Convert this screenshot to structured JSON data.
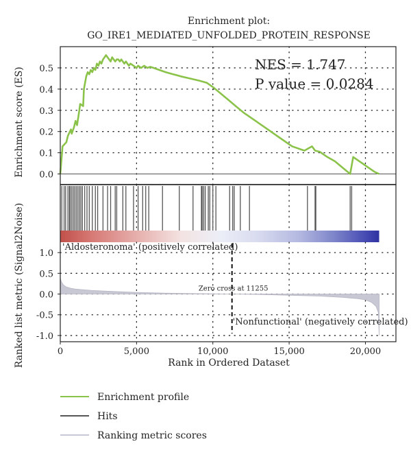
{
  "chart_data": {
    "type": "line",
    "title_line1": "Enrichment plot:",
    "title_line2": "GO_IRE1_MEDIATED_UNFOLDED_PROTEIN_RESPONSE",
    "stats": {
      "nes": "NES = 1.747",
      "pvalue": "P value = 0.0284"
    },
    "top_panel": {
      "ylabel": "Enrichment score (ES)",
      "ylim": [
        -0.05,
        0.6
      ],
      "yticks": [
        0.0,
        0.1,
        0.2,
        0.3,
        0.4,
        0.5
      ],
      "ytick_labels": [
        "0.0",
        "0.1",
        "0.2",
        "0.3",
        "0.4",
        "0.5"
      ],
      "series": [
        {
          "name": "Enrichment profile",
          "color": "#8bc34a",
          "x": [
            0,
            150,
            400,
            500,
            700,
            750,
            900,
            1000,
            1100,
            1250,
            1300,
            1500,
            1550,
            1700,
            1800,
            1900,
            2000,
            2100,
            2200,
            2300,
            2400,
            2500,
            2600,
            2700,
            2800,
            2900,
            3000,
            3100,
            3200,
            3300,
            3400,
            3500,
            3600,
            3700,
            3800,
            3900,
            4000,
            4100,
            4200,
            4300,
            4400,
            4500,
            4600,
            4800,
            5000,
            5100,
            5300,
            5500,
            5700,
            5900,
            6100,
            6500,
            6900,
            7400,
            7900,
            8500,
            9100,
            9600,
            10000,
            10500,
            11000,
            11500,
            12000,
            12800,
            13600,
            14400,
            15200,
            16000,
            16500,
            16700,
            17000,
            17500,
            18000,
            18500,
            19000,
            19200,
            19400,
            19800,
            20200,
            20600,
            20900
          ],
          "y": [
            0.0,
            0.13,
            0.15,
            0.18,
            0.21,
            0.19,
            0.22,
            0.25,
            0.23,
            0.3,
            0.33,
            0.32,
            0.4,
            0.46,
            0.48,
            0.47,
            0.49,
            0.48,
            0.5,
            0.49,
            0.52,
            0.51,
            0.53,
            0.52,
            0.54,
            0.55,
            0.56,
            0.55,
            0.54,
            0.53,
            0.55,
            0.54,
            0.53,
            0.54,
            0.54,
            0.53,
            0.54,
            0.53,
            0.52,
            0.53,
            0.52,
            0.51,
            0.52,
            0.51,
            0.5,
            0.51,
            0.5,
            0.51,
            0.5,
            0.505,
            0.5,
            0.49,
            0.48,
            0.47,
            0.46,
            0.45,
            0.44,
            0.43,
            0.41,
            0.38,
            0.35,
            0.32,
            0.29,
            0.25,
            0.21,
            0.17,
            0.13,
            0.11,
            0.13,
            0.11,
            0.105,
            0.08,
            0.06,
            0.03,
            0.0,
            0.08,
            0.07,
            0.05,
            0.03,
            0.01,
            0.0
          ]
        }
      ]
    },
    "hits_panel": {
      "name": "Hits",
      "color": "#444444",
      "x": [
        100,
        250,
        350,
        500,
        600,
        650,
        750,
        850,
        950,
        1050,
        1150,
        1250,
        1350,
        1450,
        1600,
        1750,
        1900,
        2100,
        2300,
        2450,
        2800,
        3100,
        3300,
        3600,
        3700,
        4100,
        4300,
        4800,
        5100,
        5400,
        5600,
        5800,
        6700,
        7800,
        8700,
        9250,
        9300,
        9400,
        9500,
        9700,
        9800,
        10000,
        10200,
        11100,
        11300,
        11400,
        11800,
        12400,
        16200,
        16700,
        16750,
        19000,
        19100
      ]
    },
    "bottom_panel": {
      "ylabel": "Ranked list metric (Signal2Noise)",
      "xlabel": "Rank in Ordered Dataset",
      "xlim": [
        0,
        22000
      ],
      "xticks": [
        0,
        5000,
        10000,
        15000,
        20000
      ],
      "xtick_labels": [
        "0",
        "5,000",
        "10,000",
        "15,000",
        "20,000"
      ],
      "ylim": [
        -1.15,
        1.25
      ],
      "yticks": [
        1.0,
        0.5,
        0.0,
        -0.5,
        -1.0
      ],
      "ytick_labels": [
        "1.0",
        "0.5",
        "0.0",
        "-0.5",
        "-1.0"
      ],
      "zero_cross": 11255,
      "zero_cross_label": "Zero cross at 11255",
      "positive_label": "'Aldosteronoma' (positively correlated)",
      "negative_label": "'Nonfunctional' (negatively correlated)",
      "positive_color": "#c0392b",
      "negative_color": "#3a3ab0",
      "series": [
        {
          "name": "Ranking metric scores",
          "color": "#c8c8d4",
          "x": [
            0,
            50,
            100,
            200,
            400,
            700,
            1000,
            2000,
            3000,
            5000,
            7000,
            9000,
            11255,
            13000,
            15000,
            17000,
            18500,
            19500,
            20000,
            20400,
            20700,
            20850,
            20900
          ],
          "y": [
            0.4,
            0.32,
            0.28,
            0.22,
            0.17,
            0.14,
            0.12,
            0.09,
            0.07,
            0.04,
            0.02,
            0.01,
            0.0,
            -0.01,
            -0.03,
            -0.05,
            -0.08,
            -0.11,
            -0.14,
            -0.2,
            -0.3,
            -0.45,
            -1.0
          ]
        }
      ]
    },
    "legend": {
      "placement": "bottom-left",
      "items": [
        {
          "label": "Enrichment profile",
          "color": "#8bc34a"
        },
        {
          "label": "Hits",
          "color": "#555555"
        },
        {
          "label": "Ranking metric scores",
          "color": "#c8c8d4"
        }
      ]
    },
    "grid": true
  }
}
